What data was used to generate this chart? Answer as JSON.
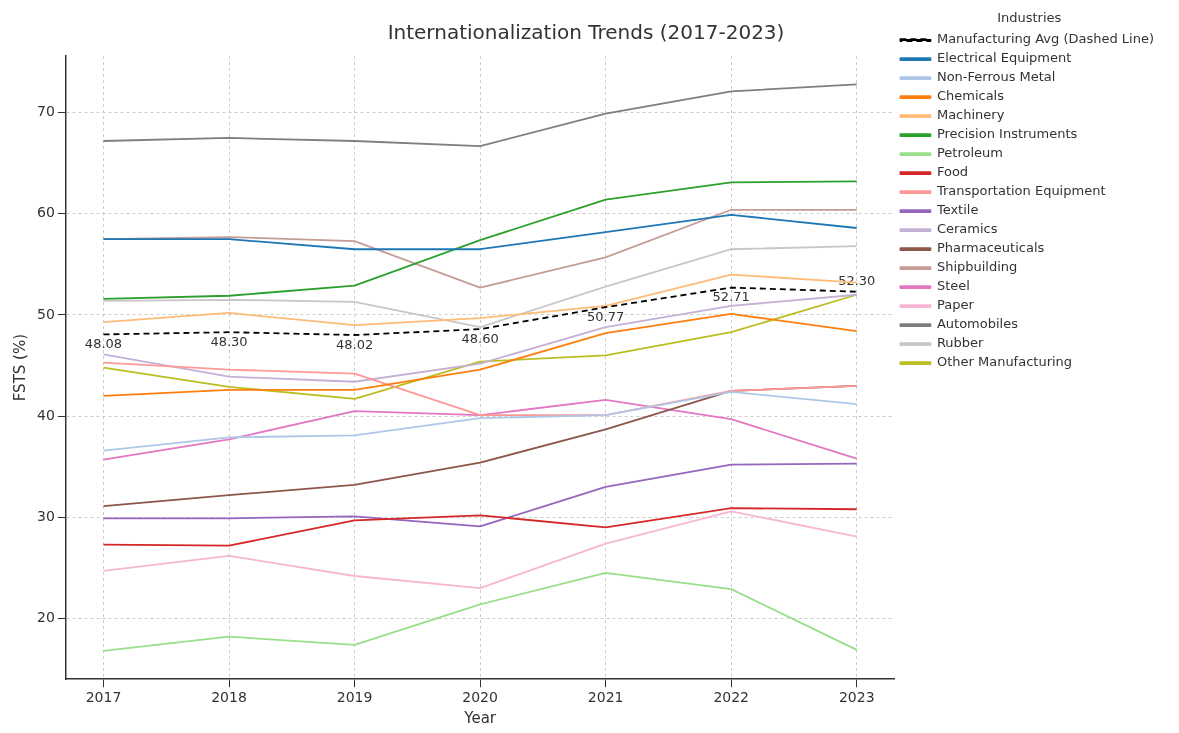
{
  "chart_data": {
    "type": "line",
    "title": "Internationalization Trends (2017-2023)",
    "xlabel": "Year",
    "ylabel": "FSTS (%)",
    "legend_title": "Industries",
    "legend": "right",
    "grid": true,
    "marker": "none",
    "x": [
      2017,
      2018,
      2019,
      2020,
      2021,
      2022,
      2023
    ],
    "xlim": [
      2016.7,
      2023.3
    ],
    "xticks": [
      2017,
      2018,
      2019,
      2020,
      2021,
      2022,
      2023
    ],
    "ylim": [
      14,
      75.6
    ],
    "yticks": [
      20,
      30,
      40,
      50,
      60,
      70
    ],
    "series": [
      {
        "name": "Manufacturing Avg (Dashed Line)",
        "color": "#000000",
        "line_style": "dashed",
        "values": [
          48.08,
          48.3,
          48.02,
          48.6,
          50.77,
          52.71,
          52.3
        ],
        "value_labels": [
          "48.08",
          "48.30",
          "48.02",
          "48.60",
          "50.77",
          "52.71",
          "52.30"
        ]
      },
      {
        "name": "Electrical Equipment",
        "color": "#1f77b4",
        "values": [
          57.5,
          57.5,
          56.5,
          56.5,
          58.2,
          59.9,
          58.6
        ]
      },
      {
        "name": "Non-Ferrous Metal",
        "color": "#aec7e8",
        "values": [
          36.6,
          37.9,
          38.1,
          39.8,
          40.1,
          42.4,
          41.2
        ]
      },
      {
        "name": "Chemicals",
        "color": "#ff7f0e",
        "values": [
          42.0,
          42.6,
          42.6,
          44.6,
          48.2,
          50.1,
          48.4
        ]
      },
      {
        "name": "Machinery",
        "color": "#ffbb78",
        "values": [
          49.3,
          50.2,
          49.0,
          49.7,
          50.9,
          54.0,
          53.2
        ]
      },
      {
        "name": "Precision Instruments",
        "color": "#2ca02c",
        "values": [
          51.6,
          51.9,
          52.9,
          57.4,
          61.4,
          63.1,
          63.2
        ]
      },
      {
        "name": "Petroleum",
        "color": "#98df8a",
        "values": [
          16.8,
          18.2,
          17.4,
          21.4,
          24.5,
          22.9,
          16.9
        ]
      },
      {
        "name": "Food",
        "color": "#d62728",
        "values": [
          27.3,
          27.2,
          29.7,
          30.2,
          29.0,
          30.9,
          30.8
        ]
      },
      {
        "name": "Transportation Equipment",
        "color": "#ff9896",
        "values": [
          45.3,
          44.6,
          44.2,
          40.1,
          40.1,
          42.5,
          43.0
        ]
      },
      {
        "name": "Textile",
        "color": "#9467bd",
        "values": [
          29.9,
          29.9,
          30.1,
          29.1,
          33.0,
          35.2,
          35.3
        ]
      },
      {
        "name": "Ceramics",
        "color": "#c5b0d5",
        "values": [
          46.1,
          43.9,
          43.4,
          45.2,
          48.8,
          50.9,
          52.0
        ]
      },
      {
        "name": "Pharmaceuticals",
        "color": "#8c564b",
        "values": [
          31.1,
          32.2,
          33.2,
          35.4,
          38.7,
          42.5,
          43.0
        ]
      },
      {
        "name": "Shipbuilding",
        "color": "#c49c94",
        "values": [
          57.5,
          57.7,
          57.3,
          52.7,
          55.7,
          60.4,
          60.4
        ]
      },
      {
        "name": "Steel",
        "color": "#e377c2",
        "values": [
          35.7,
          37.7,
          40.5,
          40.1,
          41.6,
          39.7,
          35.8
        ]
      },
      {
        "name": "Paper",
        "color": "#f7b6d2",
        "values": [
          24.7,
          26.2,
          24.2,
          23.0,
          27.4,
          30.6,
          28.1
        ]
      },
      {
        "name": "Automobiles",
        "color": "#7f7f7f",
        "values": [
          67.2,
          67.5,
          67.2,
          66.7,
          69.9,
          72.1,
          72.8
        ]
      },
      {
        "name": "Rubber",
        "color": "#c7c7c7",
        "values": [
          51.4,
          51.5,
          51.3,
          48.8,
          52.8,
          56.5,
          56.8
        ]
      },
      {
        "name": "Other Manufacturing",
        "color": "#bcbd22",
        "values": [
          44.8,
          42.9,
          41.7,
          45.4,
          46.0,
          48.3,
          52.0
        ]
      }
    ]
  }
}
